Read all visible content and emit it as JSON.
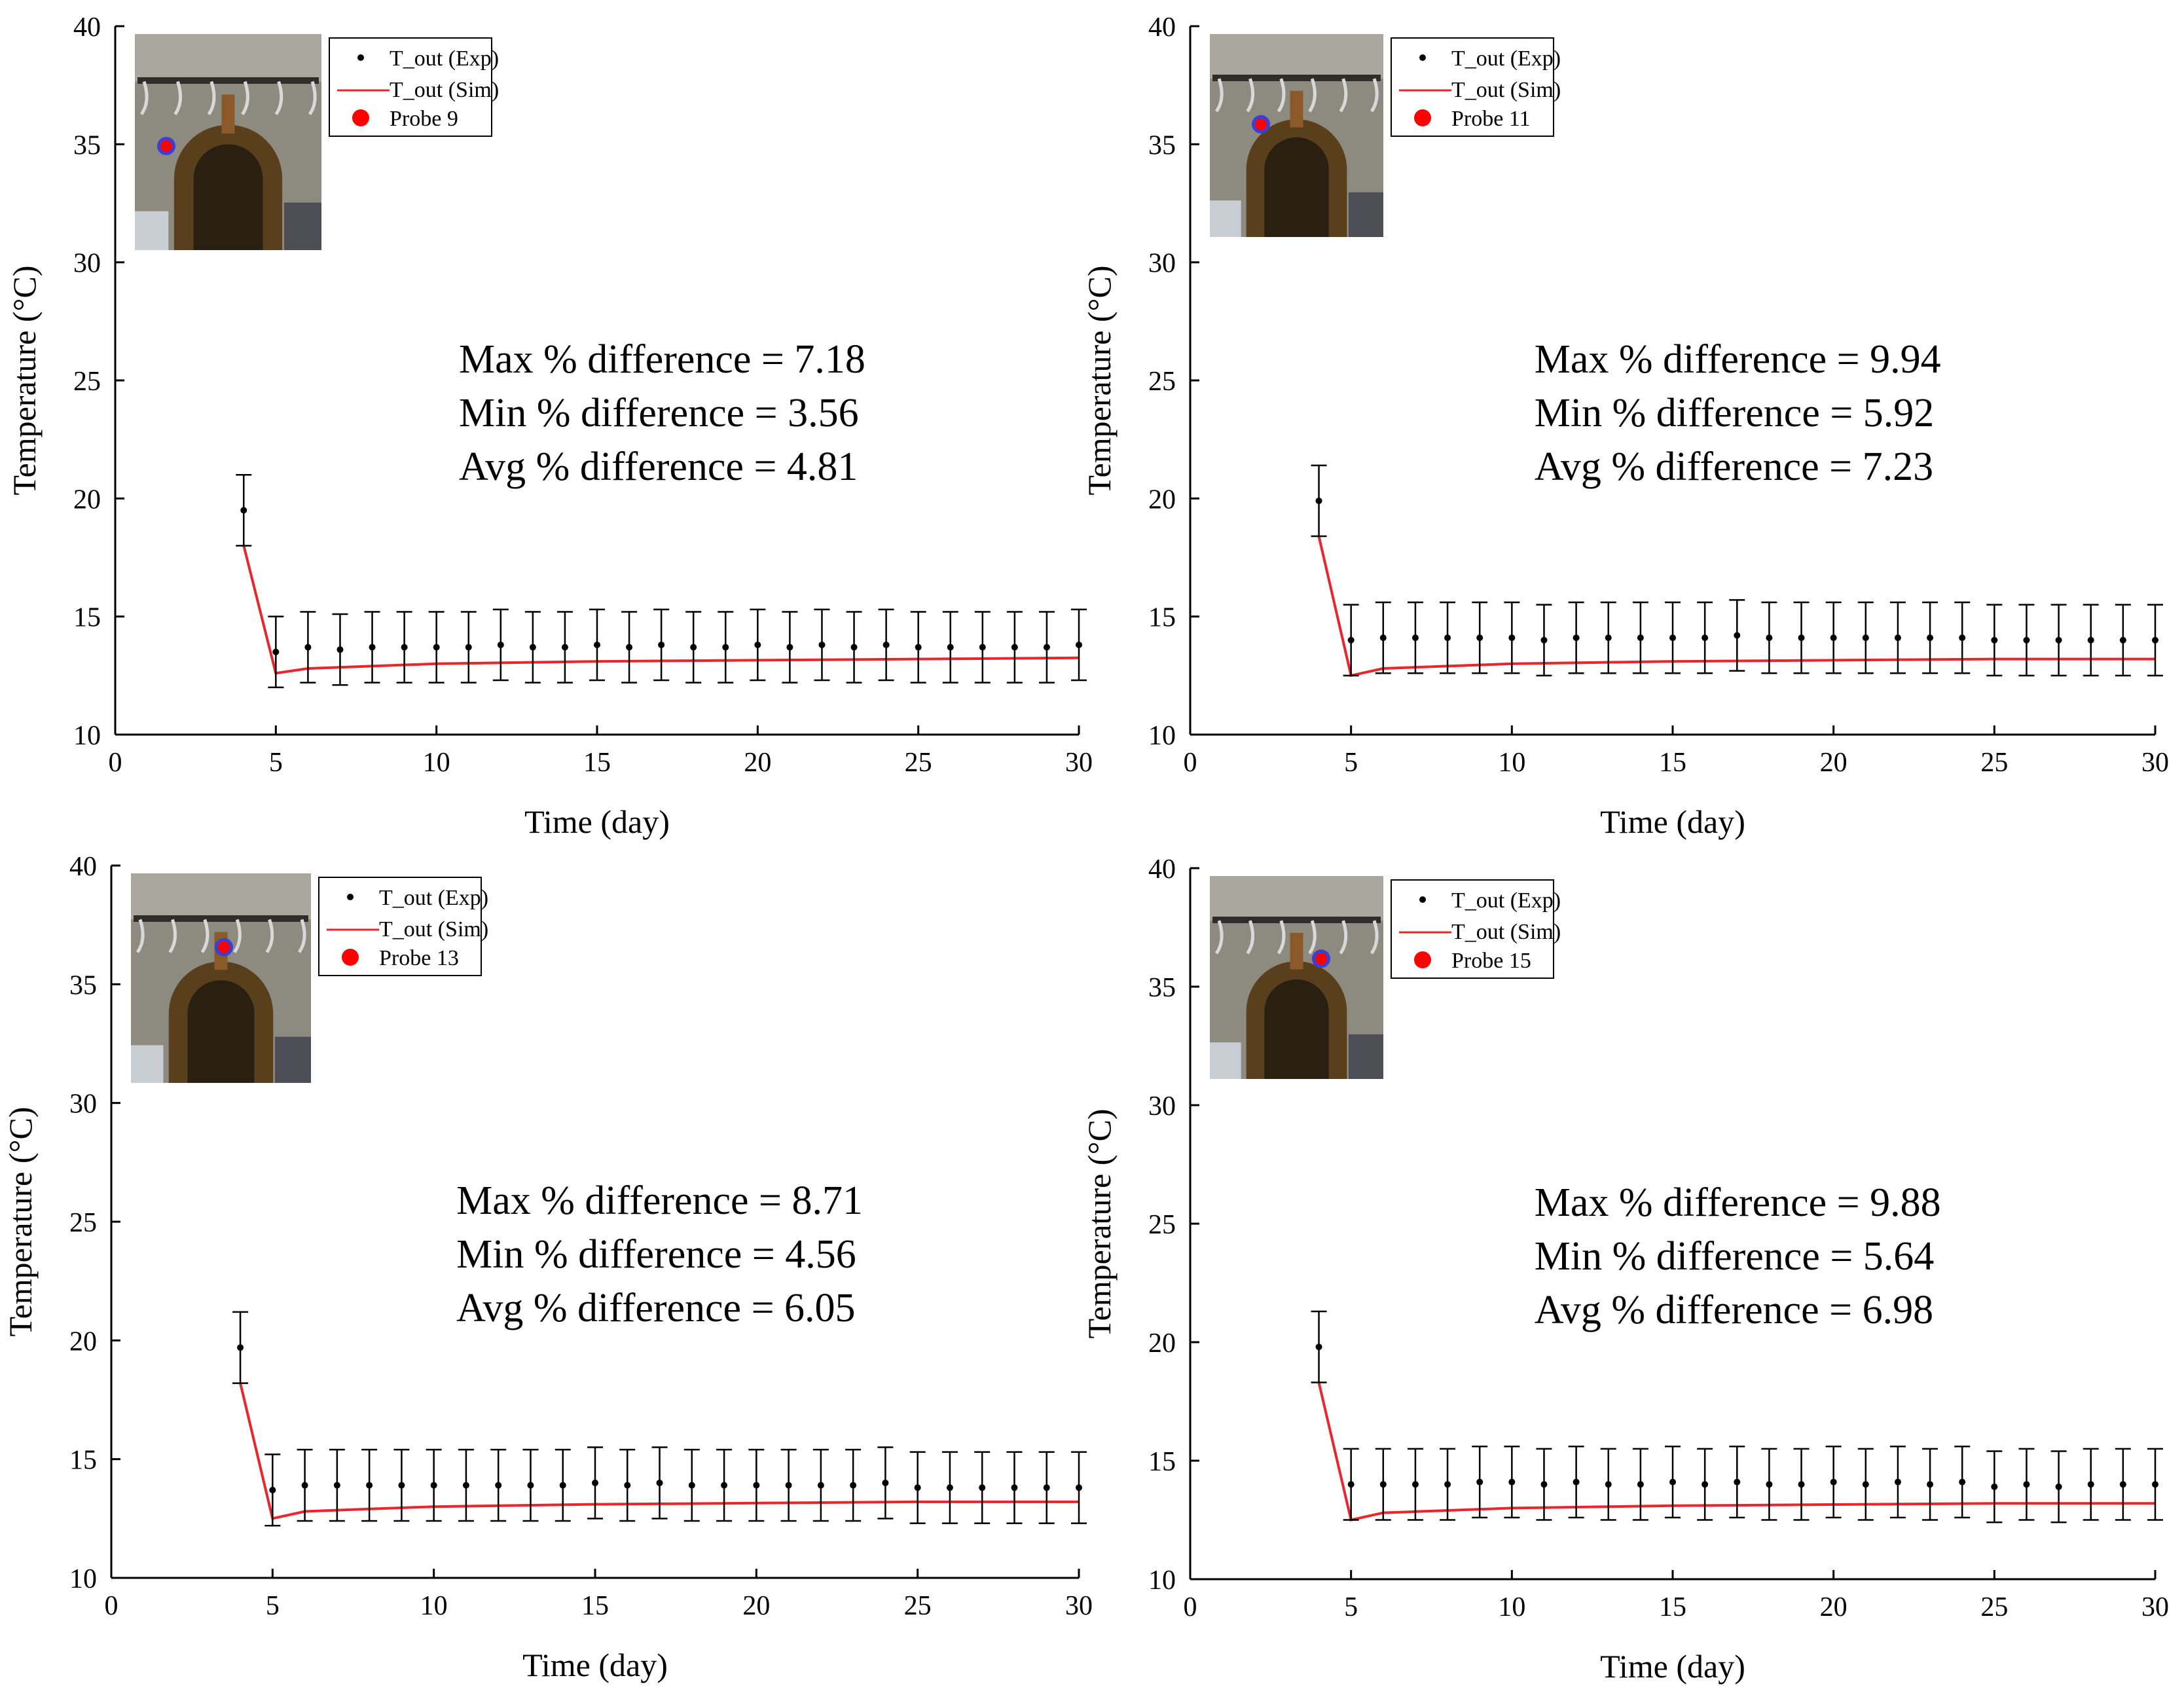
{
  "colors": {
    "axis": "#000000",
    "exp_marker": "#000000",
    "sim_line": "#e8262b",
    "probe_dot": "#ff0000",
    "probe_ring": "#3a3fd6",
    "legend_border": "#000000"
  },
  "chart_data": [
    {
      "type": "line",
      "xlabel": "Time (day)",
      "ylabel": "Temperature (°C)",
      "xlim": [
        0,
        30
      ],
      "ylim": [
        10,
        40
      ],
      "xticks": [
        0,
        5,
        10,
        15,
        20,
        25,
        30
      ],
      "yticks": [
        10,
        15,
        20,
        25,
        30,
        35,
        40
      ],
      "legend_position": "top-left",
      "legend": [
        "T_out (Exp)",
        "T_out (Sim)",
        "Probe 9"
      ],
      "inset_icon": "tunnel-photo-icon",
      "annotations": [
        "Max % difference = 7.18",
        "Min % difference = 3.56",
        "Avg % difference = 4.81"
      ],
      "series": [
        {
          "name": "T_out (Exp)",
          "style": "points-with-errorbars",
          "x": [
            4,
            5,
            6,
            7,
            8,
            9,
            10,
            11,
            12,
            13,
            14,
            15,
            16,
            17,
            18,
            19,
            20,
            21,
            22,
            23,
            24,
            25,
            26,
            27,
            28,
            29,
            30
          ],
          "y": [
            19.5,
            13.5,
            13.7,
            13.6,
            13.7,
            13.7,
            13.7,
            13.7,
            13.8,
            13.7,
            13.7,
            13.8,
            13.7,
            13.8,
            13.7,
            13.7,
            13.8,
            13.7,
            13.8,
            13.7,
            13.8,
            13.7,
            13.7,
            13.7,
            13.7,
            13.7,
            13.8
          ],
          "err": [
            1.5,
            1.5,
            1.5,
            1.5,
            1.5,
            1.5,
            1.5,
            1.5,
            1.5,
            1.5,
            1.5,
            1.5,
            1.5,
            1.5,
            1.5,
            1.5,
            1.5,
            1.5,
            1.5,
            1.5,
            1.5,
            1.5,
            1.5,
            1.5,
            1.5,
            1.5,
            1.5
          ]
        },
        {
          "name": "T_out (Sim)",
          "style": "line",
          "x": [
            4,
            5,
            6,
            8,
            10,
            15,
            20,
            25,
            30
          ],
          "y": [
            18.0,
            12.6,
            12.8,
            12.9,
            13.0,
            13.1,
            13.15,
            13.2,
            13.25
          ]
        }
      ]
    },
    {
      "type": "line",
      "xlabel": "Time (day)",
      "ylabel": "Temperature (°C)",
      "xlim": [
        0,
        30
      ],
      "ylim": [
        10,
        40
      ],
      "xticks": [
        0,
        5,
        10,
        15,
        20,
        25,
        30
      ],
      "yticks": [
        10,
        15,
        20,
        25,
        30,
        35,
        40
      ],
      "legend_position": "top-left",
      "legend": [
        "T_out (Exp)",
        "T_out (Sim)",
        "Probe 11"
      ],
      "inset_icon": "tunnel-photo-icon",
      "annotations": [
        "Max % difference = 9.94",
        "Min % difference = 5.92",
        "Avg % difference = 7.23"
      ],
      "series": [
        {
          "name": "T_out (Exp)",
          "style": "points-with-errorbars",
          "x": [
            4,
            5,
            6,
            7,
            8,
            9,
            10,
            11,
            12,
            13,
            14,
            15,
            16,
            17,
            18,
            19,
            20,
            21,
            22,
            23,
            24,
            25,
            26,
            27,
            28,
            29,
            30
          ],
          "y": [
            19.9,
            14.0,
            14.1,
            14.1,
            14.1,
            14.1,
            14.1,
            14.0,
            14.1,
            14.1,
            14.1,
            14.1,
            14.1,
            14.2,
            14.1,
            14.1,
            14.1,
            14.1,
            14.1,
            14.1,
            14.1,
            14.0,
            14.0,
            14.0,
            14.0,
            14.0,
            14.0
          ],
          "err": [
            1.5,
            1.5,
            1.5,
            1.5,
            1.5,
            1.5,
            1.5,
            1.5,
            1.5,
            1.5,
            1.5,
            1.5,
            1.5,
            1.5,
            1.5,
            1.5,
            1.5,
            1.5,
            1.5,
            1.5,
            1.5,
            1.5,
            1.5,
            1.5,
            1.5,
            1.5,
            1.5
          ]
        },
        {
          "name": "T_out (Sim)",
          "style": "line",
          "x": [
            4,
            5,
            6,
            8,
            10,
            15,
            20,
            25,
            30
          ],
          "y": [
            18.4,
            12.5,
            12.8,
            12.9,
            13.0,
            13.1,
            13.15,
            13.2,
            13.2
          ]
        }
      ]
    },
    {
      "type": "line",
      "xlabel": "Time (day)",
      "ylabel": "Temperature (°C)",
      "xlim": [
        0,
        30
      ],
      "ylim": [
        10,
        40
      ],
      "xticks": [
        0,
        5,
        10,
        15,
        20,
        25,
        30
      ],
      "yticks": [
        10,
        15,
        20,
        25,
        30,
        35,
        40
      ],
      "legend_position": "top-left",
      "legend": [
        "T_out (Exp)",
        "T_out (Sim)",
        "Probe 13"
      ],
      "inset_icon": "tunnel-photo-icon",
      "annotations": [
        "Max % difference = 8.71",
        "Min % difference = 4.56",
        "Avg % difference = 6.05"
      ],
      "series": [
        {
          "name": "T_out (Exp)",
          "style": "points-with-errorbars",
          "x": [
            4,
            5,
            6,
            7,
            8,
            9,
            10,
            11,
            12,
            13,
            14,
            15,
            16,
            17,
            18,
            19,
            20,
            21,
            22,
            23,
            24,
            25,
            26,
            27,
            28,
            29,
            30
          ],
          "y": [
            19.7,
            13.7,
            13.9,
            13.9,
            13.9,
            13.9,
            13.9,
            13.9,
            13.9,
            13.9,
            13.9,
            14.0,
            13.9,
            14.0,
            13.9,
            13.9,
            13.9,
            13.9,
            13.9,
            13.9,
            14.0,
            13.8,
            13.8,
            13.8,
            13.8,
            13.8,
            13.8
          ],
          "err": [
            1.5,
            1.5,
            1.5,
            1.5,
            1.5,
            1.5,
            1.5,
            1.5,
            1.5,
            1.5,
            1.5,
            1.5,
            1.5,
            1.5,
            1.5,
            1.5,
            1.5,
            1.5,
            1.5,
            1.5,
            1.5,
            1.5,
            1.5,
            1.5,
            1.5,
            1.5,
            1.5
          ]
        },
        {
          "name": "T_out (Sim)",
          "style": "line",
          "x": [
            4,
            5,
            6,
            8,
            10,
            15,
            20,
            25,
            30
          ],
          "y": [
            18.2,
            12.5,
            12.8,
            12.9,
            13.0,
            13.1,
            13.15,
            13.2,
            13.2
          ]
        }
      ]
    },
    {
      "type": "line",
      "xlabel": "Time (day)",
      "ylabel": "Temperature (°C)",
      "xlim": [
        0,
        30
      ],
      "ylim": [
        10,
        40
      ],
      "xticks": [
        0,
        5,
        10,
        15,
        20,
        25,
        30
      ],
      "yticks": [
        10,
        15,
        20,
        25,
        30,
        35,
        40
      ],
      "legend_position": "top-left",
      "legend": [
        "T_out (Exp)",
        "T_out (Sim)",
        "Probe 15"
      ],
      "inset_icon": "tunnel-photo-icon",
      "annotations": [
        "Max % difference = 9.88",
        "Min % difference = 5.64",
        "Avg % difference = 6.98"
      ],
      "series": [
        {
          "name": "T_out (Exp)",
          "style": "points-with-errorbars",
          "x": [
            4,
            5,
            6,
            7,
            8,
            9,
            10,
            11,
            12,
            13,
            14,
            15,
            16,
            17,
            18,
            19,
            20,
            21,
            22,
            23,
            24,
            25,
            26,
            27,
            28,
            29,
            30
          ],
          "y": [
            19.8,
            14.0,
            14.0,
            14.0,
            14.0,
            14.1,
            14.1,
            14.0,
            14.1,
            14.0,
            14.0,
            14.1,
            14.0,
            14.1,
            14.0,
            14.0,
            14.1,
            14.0,
            14.1,
            14.0,
            14.1,
            13.9,
            14.0,
            13.9,
            14.0,
            14.0,
            14.0
          ],
          "err": [
            1.5,
            1.5,
            1.5,
            1.5,
            1.5,
            1.5,
            1.5,
            1.5,
            1.5,
            1.5,
            1.5,
            1.5,
            1.5,
            1.5,
            1.5,
            1.5,
            1.5,
            1.5,
            1.5,
            1.5,
            1.5,
            1.5,
            1.5,
            1.5,
            1.5,
            1.5,
            1.5
          ]
        },
        {
          "name": "T_out (Sim)",
          "style": "line",
          "x": [
            4,
            5,
            6,
            8,
            10,
            15,
            20,
            25,
            30
          ],
          "y": [
            18.3,
            12.5,
            12.8,
            12.9,
            13.0,
            13.1,
            13.15,
            13.2,
            13.2
          ]
        }
      ]
    }
  ]
}
